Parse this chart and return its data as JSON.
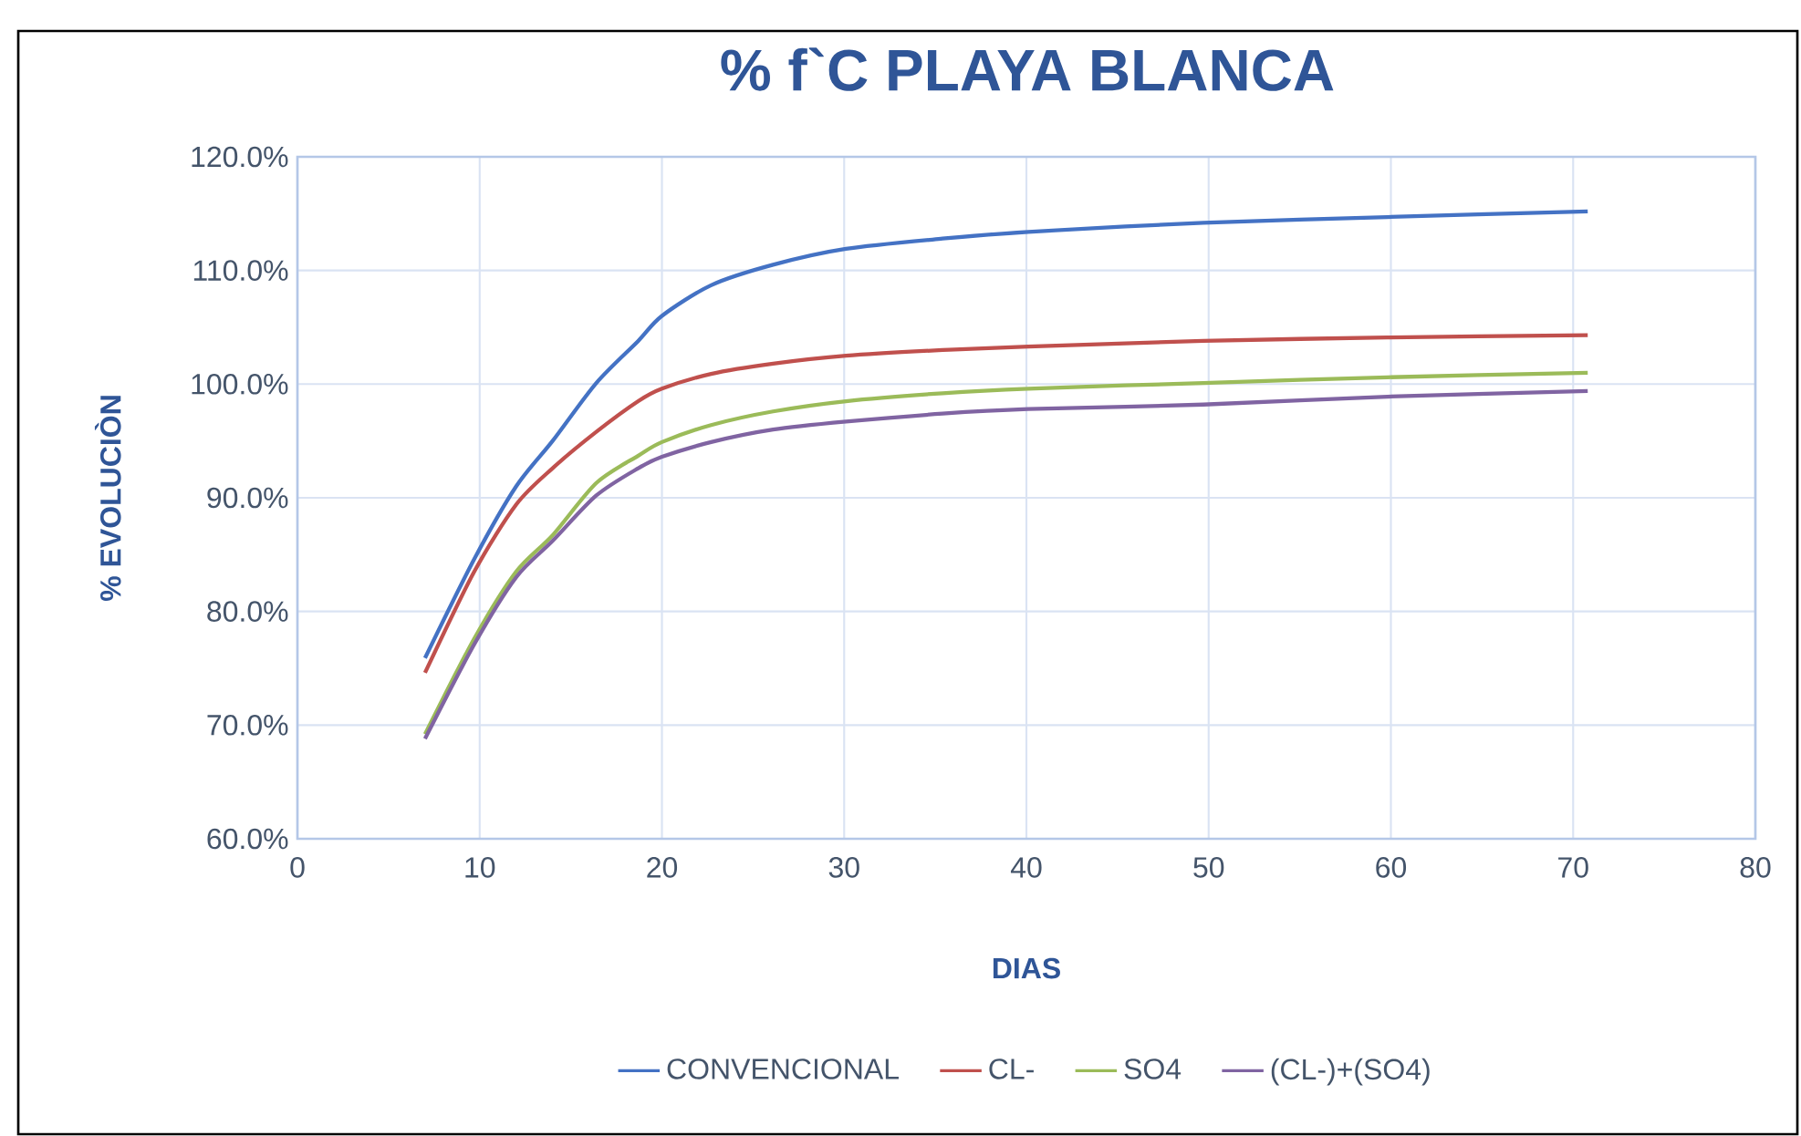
{
  "chart_data": {
    "type": "line",
    "title": "% f`C PLAYA BLANCA",
    "xlabel": "DIAS",
    "ylabel": "% EVOLUCIÒN",
    "x": [
      7,
      9.7,
      12,
      14,
      16.4,
      18.7,
      20,
      22.7,
      26.1,
      30.1,
      35.4,
      40.1,
      49.7,
      59.8,
      70.8
    ],
    "series": [
      {
        "name": "CONVENCIONAL",
        "color": "#4472c4",
        "values": [
          75.9,
          84.6,
          91.0,
          95.0,
          100.1,
          103.8,
          106.0,
          108.7,
          110.5,
          111.9,
          112.8,
          113.4,
          114.2,
          114.7,
          115.2
        ]
      },
      {
        "name": "CL-",
        "color": "#c0504d",
        "values": [
          74.6,
          83.5,
          89.4,
          92.6,
          95.8,
          98.5,
          99.6,
          100.9,
          101.8,
          102.5,
          103.0,
          103.3,
          103.8,
          104.1,
          104.3
        ]
      },
      {
        "name": "SO4",
        "color": "#9bbb59",
        "values": [
          69.2,
          77.6,
          83.5,
          86.7,
          91.3,
          93.7,
          94.9,
          96.4,
          97.6,
          98.5,
          99.2,
          99.6,
          100.1,
          100.6,
          101.0
        ]
      },
      {
        "name": "(CL-)+(SO4)",
        "color": "#8064a2",
        "values": [
          68.8,
          77.1,
          83.0,
          86.2,
          90.2,
          92.6,
          93.6,
          94.9,
          96.0,
          96.7,
          97.4,
          97.8,
          98.2,
          98.9,
          99.4
        ]
      }
    ],
    "xlim": [
      0,
      80
    ],
    "xticks": [
      0,
      10,
      20,
      30,
      40,
      50,
      60,
      70,
      80
    ],
    "ylim": [
      60,
      120
    ],
    "yticks": [
      {
        "value": 60,
        "label": "60.0%"
      },
      {
        "value": 70,
        "label": "70.0%"
      },
      {
        "value": 80,
        "label": "80.0%"
      },
      {
        "value": 90,
        "label": "90.0%"
      },
      {
        "value": 100,
        "label": "100.0%"
      },
      {
        "value": 110,
        "label": "110.0%"
      },
      {
        "value": 120,
        "label": "120.0%"
      }
    ],
    "grid": true,
    "legend": "bottom",
    "marker": "none",
    "line_style": "solid"
  }
}
